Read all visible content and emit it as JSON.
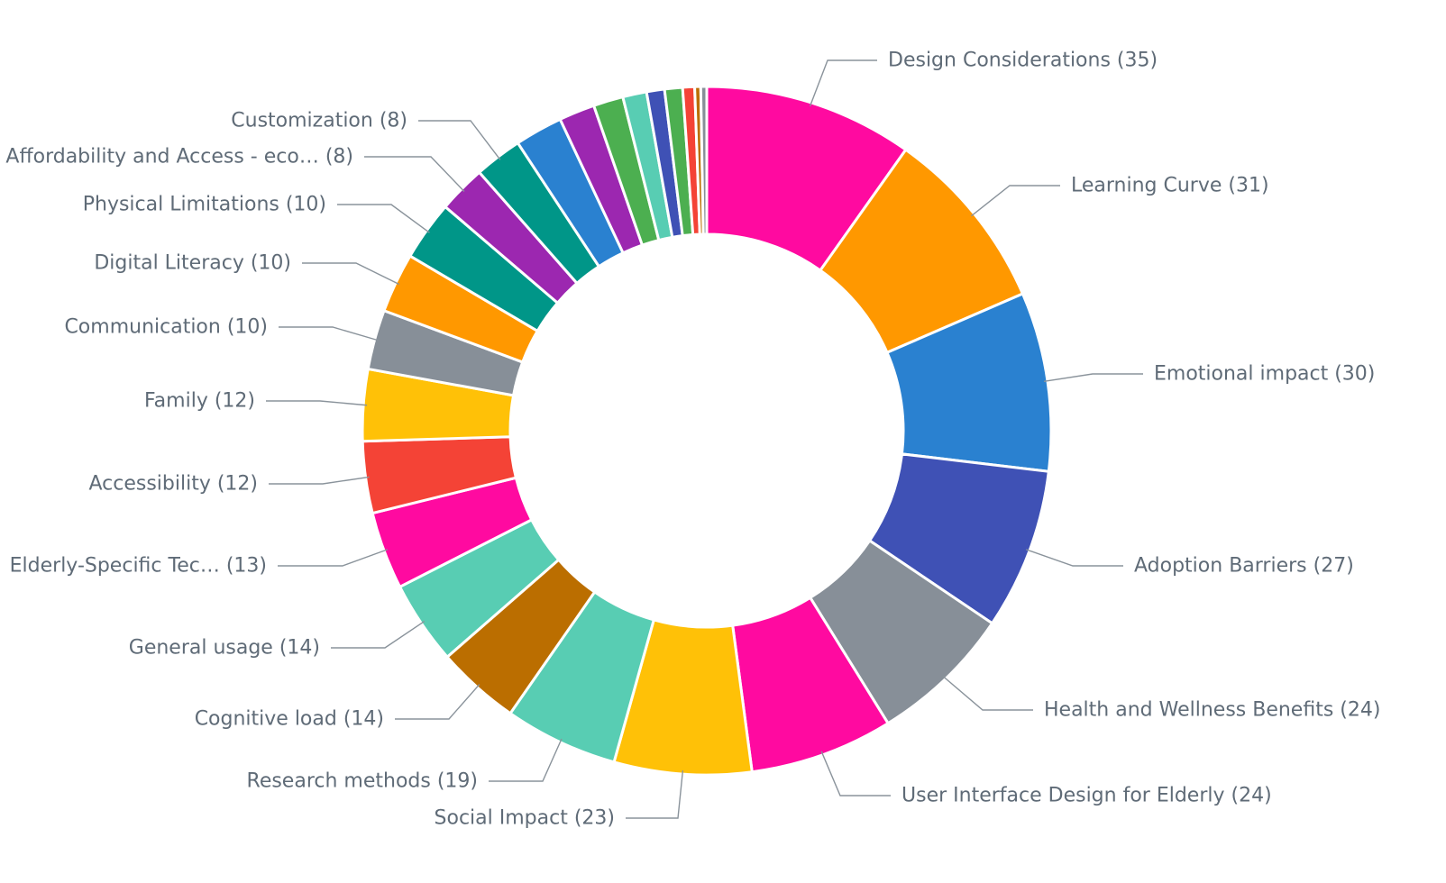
{
  "chart_data": {
    "type": "pie",
    "donut": true,
    "title": "",
    "legend": "none",
    "slices": [
      {
        "label": "Design Considerations (35)",
        "value": 35,
        "color": "#ff0aa0"
      },
      {
        "label": "Learning Curve (31)",
        "value": 31,
        "color": "#ff9800"
      },
      {
        "label": "Emotional impact (30)",
        "value": 30,
        "color": "#2a81d0"
      },
      {
        "label": "Adoption Barriers (27)",
        "value": 27,
        "color": "#3f51b5"
      },
      {
        "label": "Health and Wellness Benefits  (24)",
        "value": 24,
        "color": "#878f98"
      },
      {
        "label": "User Interface Design for Elderly (24)",
        "value": 24,
        "color": "#ff0aa0"
      },
      {
        "label": "Social Impact  (23)",
        "value": 23,
        "color": "#ffc107"
      },
      {
        "label": "Research methods (19)",
        "value": 19,
        "color": "#58cdb3"
      },
      {
        "label": "Cognitive load (14)",
        "value": 14,
        "color": "#bb6e00"
      },
      {
        "label": "General usage (14)",
        "value": 14,
        "color": "#58cdb3"
      },
      {
        "label": "Elderly-Specific Tec… (13)",
        "value": 13,
        "color": "#ff0aa0"
      },
      {
        "label": "Accessibility (12)",
        "value": 12,
        "color": "#f44336"
      },
      {
        "label": "Family  (12)",
        "value": 12,
        "color": "#ffc107"
      },
      {
        "label": "Communication (10)",
        "value": 10,
        "color": "#878f98"
      },
      {
        "label": "Digital Literacy  (10)",
        "value": 10,
        "color": "#ff9800"
      },
      {
        "label": "Physical Limitations  (10)",
        "value": 10,
        "color": "#009688"
      },
      {
        "label": "Affordability and Access - eco… (8)",
        "value": 8,
        "color": "#9c27b0"
      },
      {
        "label": "Customization (8)",
        "value": 8,
        "color": "#009688"
      },
      {
        "label": "",
        "value": 8,
        "color": "#2a81d0"
      },
      {
        "label": "",
        "value": 6,
        "color": "#9c27b0"
      },
      {
        "label": "",
        "value": 5,
        "color": "#4caf50"
      },
      {
        "label": "",
        "value": 4,
        "color": "#58cdb3"
      },
      {
        "label": "",
        "value": 3,
        "color": "#3f51b5"
      },
      {
        "label": "",
        "value": 3,
        "color": "#4caf50"
      },
      {
        "label": "",
        "value": 2,
        "color": "#f44336"
      },
      {
        "label": "",
        "value": 1,
        "color": "#bb6e00"
      },
      {
        "label": "",
        "value": 1,
        "color": "#878f98"
      }
    ]
  }
}
